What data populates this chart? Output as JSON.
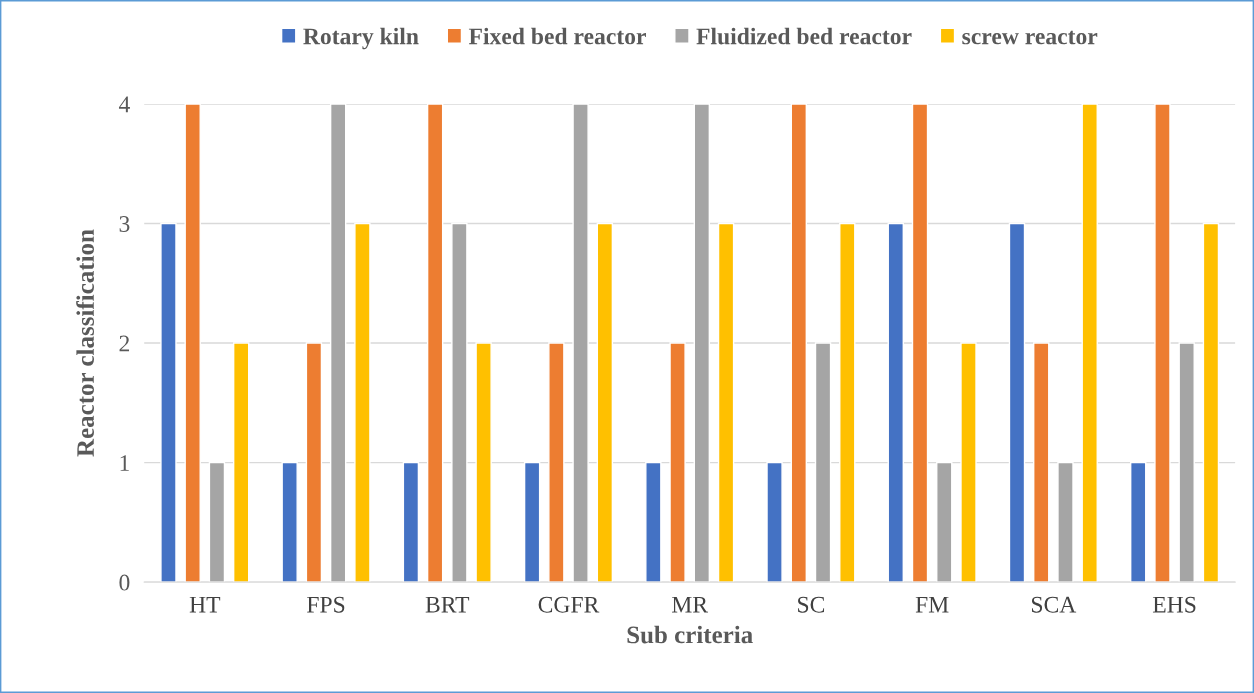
{
  "chart_data": {
    "type": "bar",
    "xlabel": "Sub criteria",
    "ylabel": "Reactor classification",
    "categories": [
      "HT",
      "FPS",
      "BRT",
      "CGFR",
      "MR",
      "SC",
      "FM",
      "SCA",
      "EHS"
    ],
    "series": [
      {
        "name": "Rotary kiln",
        "color": "#4472c4",
        "values": [
          3,
          1,
          1,
          1,
          1,
          1,
          3,
          3,
          1
        ]
      },
      {
        "name": "Fixed bed reactor",
        "color": "#ed7d31",
        "values": [
          4,
          2,
          4,
          2,
          2,
          4,
          4,
          2,
          4
        ]
      },
      {
        "name": "Fluidized bed reactor",
        "color": "#a5a5a5",
        "values": [
          1,
          4,
          3,
          4,
          4,
          2,
          1,
          1,
          2
        ]
      },
      {
        "name": "screw reactor",
        "color": "#ffc000",
        "values": [
          2,
          3,
          2,
          3,
          3,
          3,
          2,
          4,
          3
        ]
      }
    ],
    "ylim": [
      0,
      4
    ],
    "yticks": [
      0,
      1,
      2,
      3,
      4
    ],
    "grid": "y",
    "legend": "top"
  }
}
